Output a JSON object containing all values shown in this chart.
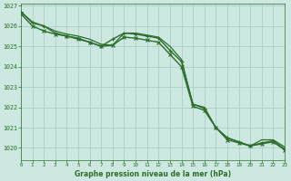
{
  "background_color": "#cce8e0",
  "grid_color": "#aacfc8",
  "line_color": "#2d6e2d",
  "xlabel": "Graphe pression niveau de la mer (hPa)",
  "ylim": [
    1019.4,
    1027.1
  ],
  "xlim": [
    0,
    23
  ],
  "yticks": [
    1020,
    1021,
    1022,
    1023,
    1024,
    1025,
    1026,
    1027
  ],
  "xticks": [
    0,
    1,
    2,
    3,
    4,
    5,
    6,
    7,
    8,
    9,
    10,
    11,
    12,
    13,
    14,
    15,
    16,
    17,
    18,
    19,
    20,
    21,
    22,
    23
  ],
  "series": [
    {
      "x": [
        0,
        1,
        2,
        3,
        4,
        5,
        6,
        7,
        8,
        9,
        10,
        11,
        12,
        13,
        14,
        15,
        16,
        17,
        18,
        19,
        20,
        21,
        22,
        23
      ],
      "y": [
        1026.7,
        1026.2,
        1026.0,
        1025.75,
        1025.6,
        1025.5,
        1025.35,
        1025.1,
        1025.05,
        1025.65,
        1025.65,
        1025.55,
        1025.45,
        1025.0,
        1024.35,
        1022.15,
        1022.0,
        1021.0,
        1020.5,
        1020.3,
        1020.1,
        1020.4,
        1020.4,
        1020.05
      ],
      "marker": null,
      "linewidth": 0.9
    },
    {
      "x": [
        0,
        1,
        2,
        3,
        4,
        5,
        6,
        7,
        8,
        9,
        10,
        11,
        12,
        13,
        14,
        15,
        16,
        17,
        18,
        19,
        20,
        21,
        22,
        23
      ],
      "y": [
        1026.7,
        1026.15,
        1026.0,
        1025.65,
        1025.5,
        1025.4,
        1025.2,
        1025.0,
        1025.35,
        1025.65,
        1025.6,
        1025.5,
        1025.4,
        1024.8,
        1024.25,
        1022.15,
        1021.95,
        1021.0,
        1020.5,
        1020.3,
        1020.1,
        1020.25,
        1020.35,
        1019.95
      ],
      "marker": "+",
      "linewidth": 1.0,
      "markersize": 3.5
    },
    {
      "x": [
        0,
        1,
        2,
        3,
        4,
        5,
        6,
        7,
        8,
        9,
        10,
        11,
        12,
        13,
        14,
        15,
        16,
        17,
        18,
        19,
        20,
        21,
        22,
        23
      ],
      "y": [
        1026.6,
        1026.0,
        1025.75,
        1025.6,
        1025.5,
        1025.35,
        1025.2,
        1025.0,
        1025.05,
        1025.45,
        1025.4,
        1025.3,
        1025.2,
        1024.6,
        1024.0,
        1022.05,
        1021.85,
        1021.0,
        1020.4,
        1020.25,
        1020.1,
        1020.2,
        1020.3,
        1019.9
      ],
      "marker": "x",
      "linewidth": 1.0,
      "markersize": 3.0
    }
  ]
}
